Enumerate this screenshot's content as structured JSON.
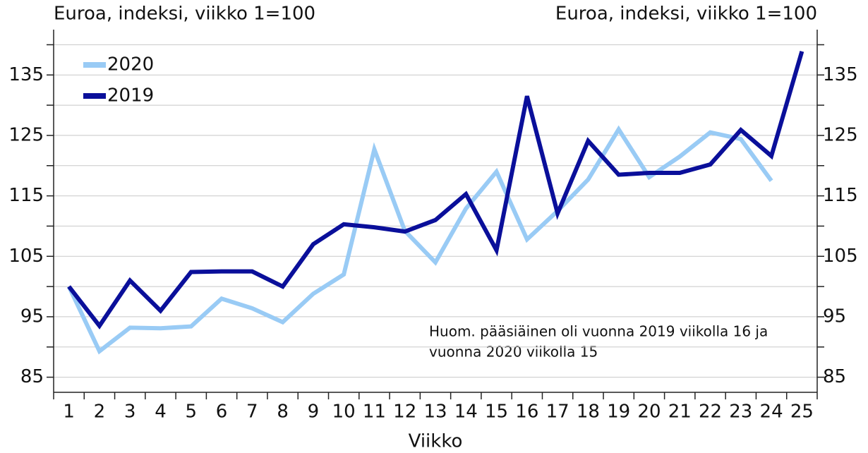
{
  "chart_data": {
    "type": "line",
    "y_label": "Euroa, indeksi, viikko 1=100",
    "y2_label": "Euroa, indeksi, viikko 1=100",
    "x_label": "Viikko",
    "annotation": [
      "Huom. pääsiäinen oli vuonna 2019 viikolla 16 ja",
      "vuonna 2020 viikolla 15"
    ],
    "categories": [
      "1",
      "2",
      "3",
      "4",
      "5",
      "6",
      "7",
      "8",
      "9",
      "10",
      "11",
      "12",
      "13",
      "14",
      "15",
      "16",
      "17",
      "18",
      "19",
      "20",
      "21",
      "22",
      "23",
      "24",
      "25"
    ],
    "series": [
      {
        "name": "2020",
        "color": "#99cbf5",
        "values": [
          100,
          89.3,
          93.2,
          93.1,
          93.4,
          98,
          96.4,
          94.1,
          98.8,
          102,
          122.7,
          109.2,
          104,
          112.9,
          119,
          107.8,
          112.5,
          117.7,
          126,
          118.1,
          121.5,
          125.5,
          124.4,
          117.5,
          null
        ]
      },
      {
        "name": "2019",
        "color": "#0a0f9a",
        "values": [
          100,
          93.5,
          101,
          96,
          102.4,
          102.5,
          102.5,
          100,
          107,
          110.3,
          109.8,
          109.1,
          111,
          115.3,
          106,
          131.5,
          112.1,
          124.1,
          118.5,
          118.8,
          118.8,
          120.2,
          125.9,
          121.6,
          138.9
        ]
      }
    ],
    "ylim": [
      82.5,
      142.5
    ],
    "yticks": [
      85,
      95,
      105,
      115,
      125,
      135
    ],
    "y2lim": [
      82.5,
      142.5
    ],
    "y2ticks": [
      85,
      95,
      105,
      115,
      125,
      135
    ],
    "grid_ticks": [
      85,
      90,
      95,
      100,
      105,
      110,
      115,
      120,
      125,
      130,
      135,
      140
    ],
    "grid": true,
    "legend": "upper left"
  }
}
